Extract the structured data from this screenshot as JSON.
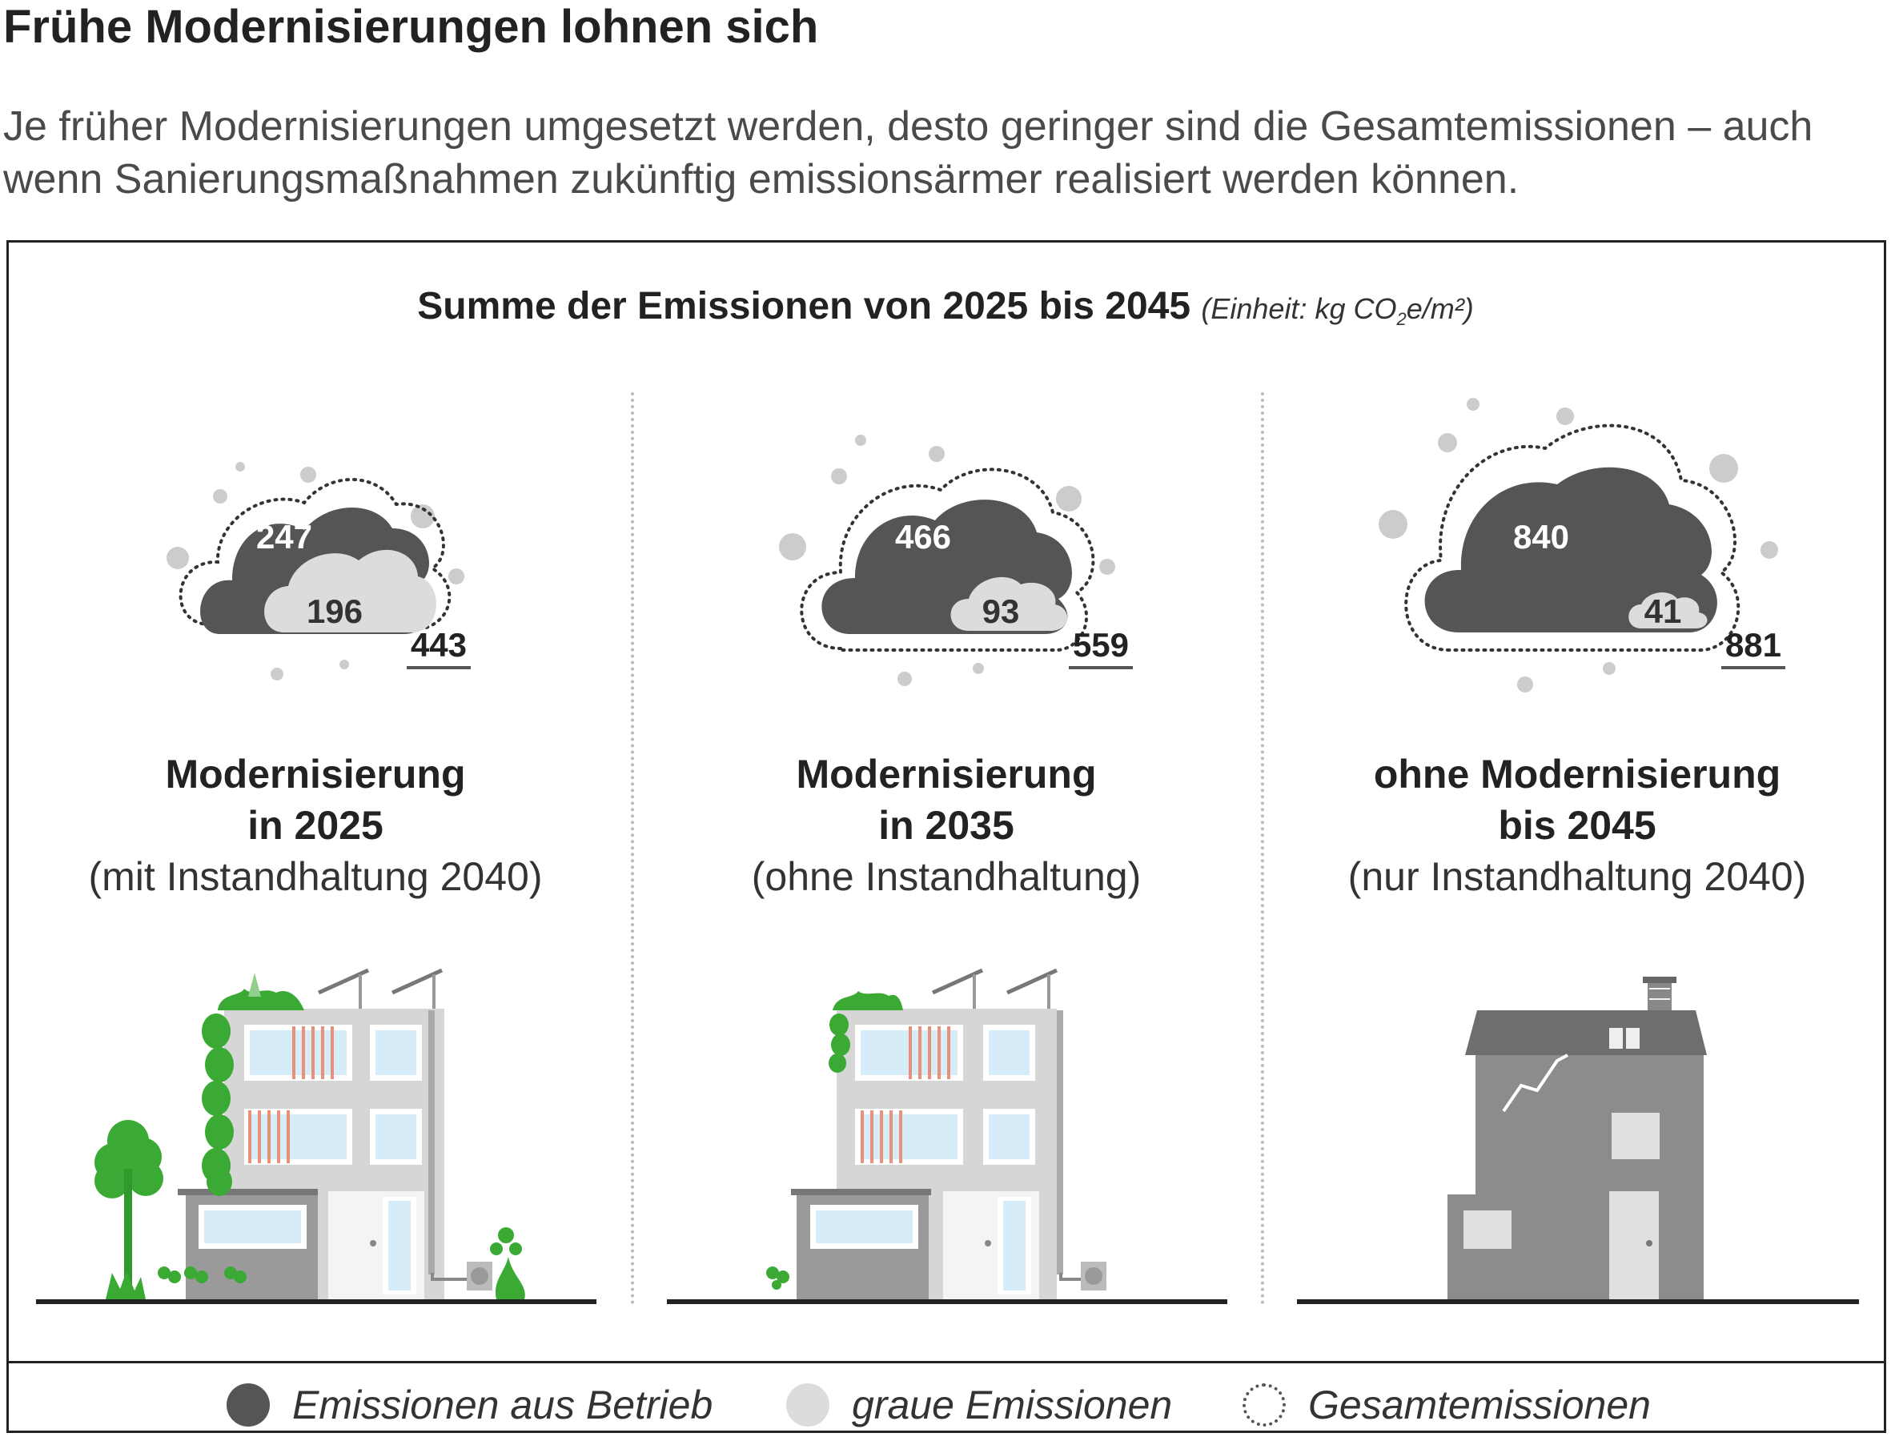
{
  "header": {
    "title": "Frühe Modernisierungen lohnen sich",
    "subtitle": "Je früher Modernisierungen umgesetzt werden, desto geringer sind die Gesamtemissionen – auch wenn Sanierungsmaßnahmen zukünftig emissionsärmer realisiert werden können."
  },
  "chart_title": {
    "main": "Summe der Emissionen von 2025 bis 2045",
    "unit_prefix": "(Einheit: kg CO",
    "unit_sub": "2",
    "unit_suffix": "e/m²)"
  },
  "colors": {
    "operational": "#555555",
    "grey_emissions": "#dcdcdc",
    "dots": "#cccccc",
    "green": "#3aaa35",
    "building_light": "#d6d6d6",
    "building_dark": "#8c8c8c"
  },
  "chart_data": {
    "type": "table",
    "unit": "kg CO2e/m²",
    "scenarios": [
      {
        "title_line1": "Modernisierung",
        "title_line2": "in 2025",
        "subtitle": "(mit Instandhaltung 2040)",
        "operational": 247,
        "grey": 196,
        "total": 443
      },
      {
        "title_line1": "Modernisierung",
        "title_line2": "in 2035",
        "subtitle": "(ohne Instandhaltung)",
        "operational": 466,
        "grey": 93,
        "total": 559
      },
      {
        "title_line1": "ohne Modernisierung",
        "title_line2": "bis 2045",
        "subtitle": "(nur Instandhaltung 2040)",
        "operational": 840,
        "grey": 41,
        "total": 881
      }
    ]
  },
  "legend": {
    "operational": "Emissionen aus Betrieb",
    "grey": "graue Emissionen",
    "total": "Gesamtemissionen"
  }
}
